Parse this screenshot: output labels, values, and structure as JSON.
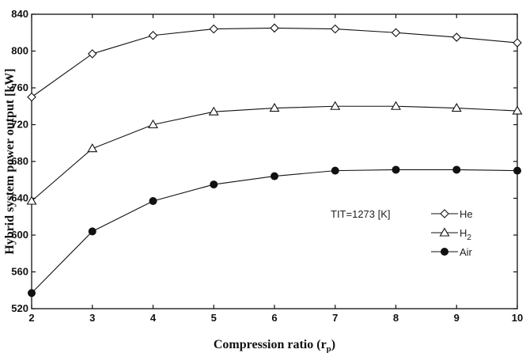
{
  "chart_data": {
    "type": "line",
    "xlabel": "Compression ratio (r",
    "xlabel_sub": "p",
    "xlabel_close": ")",
    "ylabel": "Hybrid system power output [kW]",
    "x": [
      2,
      3,
      4,
      5,
      6,
      7,
      8,
      9,
      10
    ],
    "xlim": [
      2,
      10
    ],
    "ylim": [
      520,
      840
    ],
    "xticks": [
      2,
      3,
      4,
      5,
      6,
      7,
      8,
      9,
      10
    ],
    "yticks": [
      520,
      560,
      600,
      640,
      680,
      720,
      760,
      800,
      840
    ],
    "grid": false,
    "legend_position": "center-right",
    "annotation": "TIT=1273 [K]",
    "series": [
      {
        "name": "He",
        "marker": "open-diamond",
        "values": [
          750,
          797,
          817,
          824,
          825,
          824,
          820,
          815,
          809
        ]
      },
      {
        "name": "H",
        "name_sub": "2",
        "marker": "open-triangle",
        "values": [
          637,
          694,
          720,
          734,
          738,
          740,
          740,
          738,
          735
        ]
      },
      {
        "name": "Air",
        "marker": "filled-circle",
        "values": [
          537,
          604,
          637,
          655,
          664,
          670,
          671,
          671,
          670
        ]
      }
    ]
  }
}
